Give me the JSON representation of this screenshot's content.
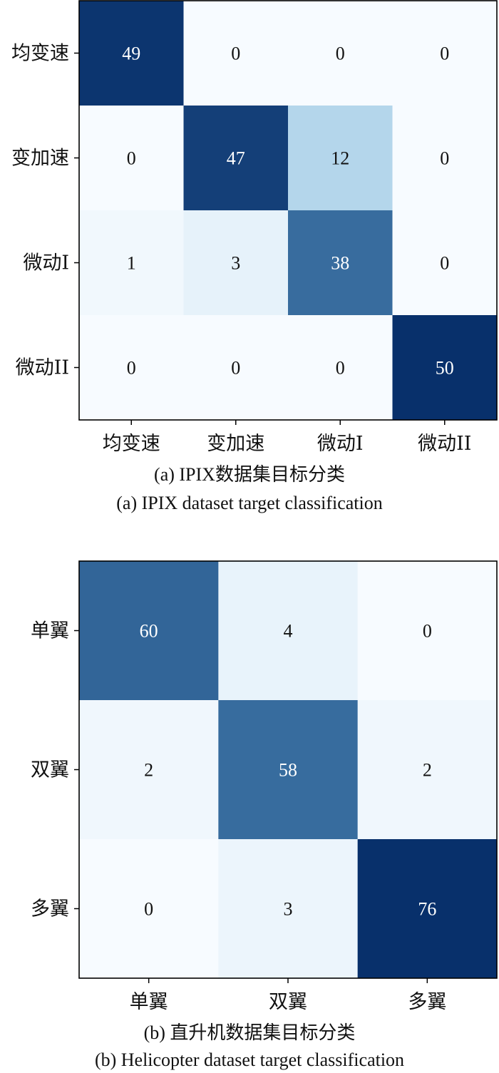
{
  "chart_data": [
    {
      "type": "heatmap",
      "title": "(a) IPIX数据集目标分类",
      "subtitle": "(a) IPIX dataset target classification",
      "xlabel": "",
      "ylabel": "",
      "x_categories": [
        "均变速",
        "变加速",
        "微动I",
        "微动II"
      ],
      "y_categories": [
        "均变速",
        "变加速",
        "微动I",
        "微动II"
      ],
      "values": [
        [
          49,
          0,
          0,
          0
        ],
        [
          0,
          47,
          12,
          0
        ],
        [
          1,
          3,
          38,
          0
        ],
        [
          0,
          0,
          0,
          50
        ]
      ],
      "colormap": "Blues",
      "colors": {
        "min": "#f7fbff",
        "mid": "#6baed6",
        "max": "#08306b"
      },
      "legend": false,
      "grid": false
    },
    {
      "type": "heatmap",
      "title": "(b) 直升机数据集目标分类",
      "subtitle": "(b) Helicopter dataset target classification",
      "xlabel": "",
      "ylabel": "",
      "x_categories": [
        "单翼",
        "双翼",
        "多翼"
      ],
      "y_categories": [
        "单翼",
        "双翼",
        "多翼"
      ],
      "values": [
        [
          60,
          4,
          0
        ],
        [
          2,
          58,
          2
        ],
        [
          0,
          3,
          76
        ]
      ],
      "colormap": "Blues",
      "colors": {
        "min": "#f7fbff",
        "mid": "#6baed6",
        "max": "#08306b"
      },
      "legend": false,
      "grid": false
    }
  ]
}
